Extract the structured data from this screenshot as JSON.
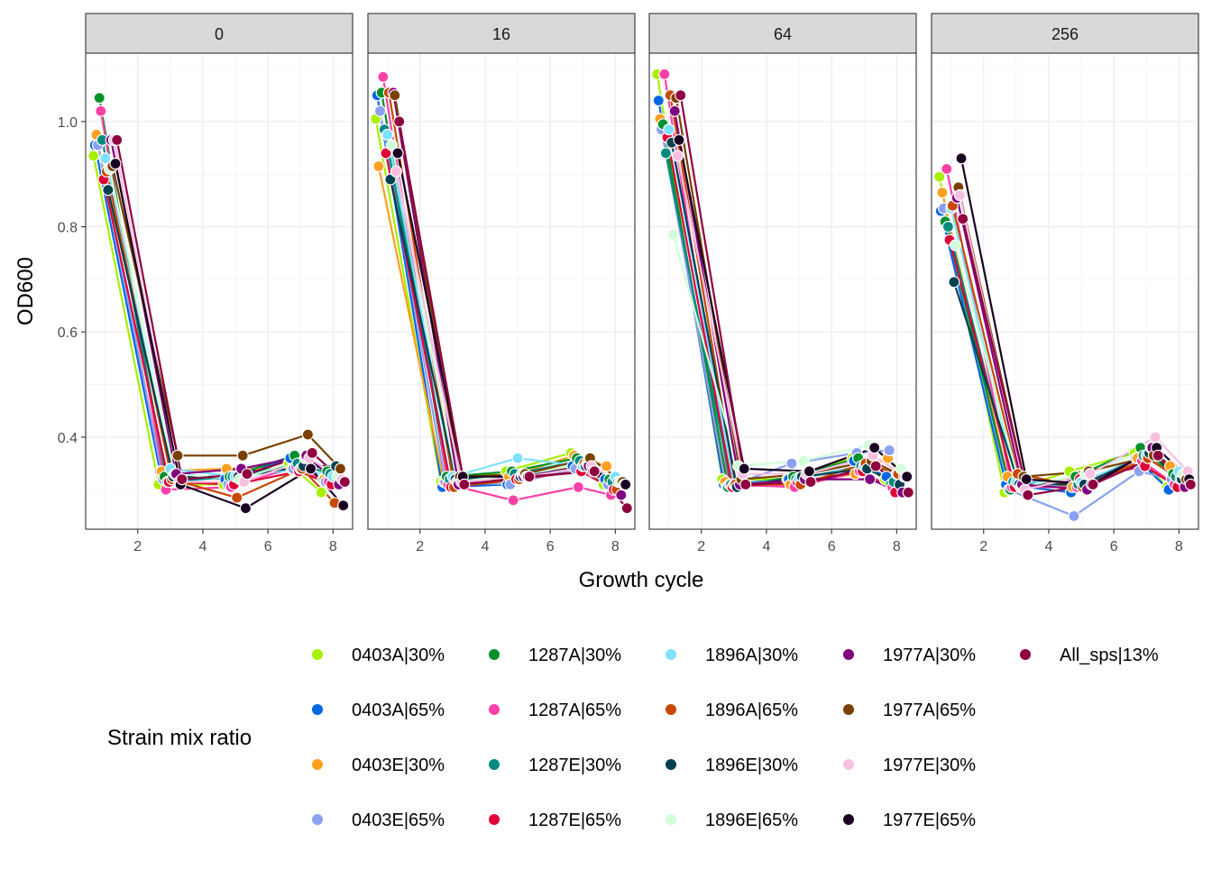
{
  "chart_data": {
    "type": "line",
    "xlabel": "Growth cycle",
    "ylabel": "OD600",
    "xlim": [
      0.4,
      8.6
    ],
    "ylim": [
      0.225,
      1.13
    ],
    "x_ticks": [
      2,
      4,
      6,
      8
    ],
    "y_ticks": [
      0.4,
      0.6,
      0.8,
      1.0
    ],
    "y_tick_labels": [
      "0.4",
      "0.6",
      "0.8",
      "1.0"
    ],
    "grid": true,
    "legend_position": "bottom",
    "legend_title": "Strain mix ratio",
    "facets": [
      "0",
      "16",
      "64",
      "256"
    ],
    "x": [
      1,
      3,
      5,
      7,
      8
    ],
    "series": [
      {
        "name": "0403A|30%",
        "color": "#a6f000",
        "values": [
          [
            0.935,
            0.31,
            0.31,
            0.35,
            0.295
          ],
          [
            1.005,
            0.315,
            0.335,
            0.37,
            0.31
          ],
          [
            1.09,
            0.32,
            0.32,
            0.36,
            0.32
          ],
          [
            0.895,
            0.295,
            0.335,
            0.37,
            0.305
          ]
        ]
      },
      {
        "name": "0403A|65%",
        "color": "#0066e6",
        "values": [
          [
            0.955,
            0.335,
            0.32,
            0.36,
            0.32
          ],
          [
            1.05,
            0.305,
            0.31,
            0.345,
            0.32
          ],
          [
            1.04,
            0.31,
            0.32,
            0.355,
            0.325
          ],
          [
            0.83,
            0.31,
            0.295,
            0.36,
            0.3
          ]
        ]
      },
      {
        "name": "0403E|30%",
        "color": "#ffa020",
        "values": [
          [
            0.975,
            0.335,
            0.34,
            0.34,
            0.32
          ],
          [
            0.915,
            0.315,
            0.325,
            0.365,
            0.345
          ],
          [
            1.005,
            0.315,
            0.31,
            0.33,
            0.36
          ],
          [
            0.865,
            0.325,
            0.305,
            0.36,
            0.345
          ]
        ]
      },
      {
        "name": "0403E|65%",
        "color": "#8aa0f0",
        "values": [
          [
            0.955,
            0.32,
            0.31,
            0.34,
            0.315
          ],
          [
            1.02,
            0.315,
            0.31,
            0.34,
            0.31
          ],
          [
            0.985,
            0.305,
            0.35,
            0.37,
            0.375
          ],
          [
            0.835,
            0.3,
            0.25,
            0.335,
            0.32
          ]
        ]
      },
      {
        "name": "1287A|30%",
        "color": "#00902a",
        "values": [
          [
            1.045,
            0.325,
            0.325,
            0.365,
            0.335
          ],
          [
            1.055,
            0.325,
            0.335,
            0.36,
            0.32
          ],
          [
            0.995,
            0.305,
            0.325,
            0.36,
            0.31
          ],
          [
            0.81,
            0.3,
            0.325,
            0.38,
            0.33
          ]
        ]
      },
      {
        "name": "1287A|65%",
        "color": "#ff40a8",
        "values": [
          [
            1.02,
            0.3,
            0.305,
            0.345,
            0.315
          ],
          [
            1.085,
            0.31,
            0.28,
            0.305,
            0.29
          ],
          [
            1.09,
            0.31,
            0.305,
            0.335,
            0.305
          ],
          [
            0.91,
            0.305,
            0.305,
            0.355,
            0.31
          ]
        ]
      },
      {
        "name": "1287E|30%",
        "color": "#008a80",
        "values": [
          [
            0.965,
            0.315,
            0.325,
            0.35,
            0.33
          ],
          [
            0.985,
            0.32,
            0.33,
            0.355,
            0.315
          ],
          [
            0.94,
            0.31,
            0.32,
            0.345,
            0.315
          ],
          [
            0.8,
            0.315,
            0.31,
            0.365,
            0.325
          ]
        ]
      },
      {
        "name": "1287E|65%",
        "color": "#e00038",
        "values": [
          [
            0.89,
            0.315,
            0.31,
            0.335,
            0.31
          ],
          [
            0.94,
            0.305,
            0.32,
            0.335,
            0.3
          ],
          [
            0.97,
            0.305,
            0.315,
            0.335,
            0.295
          ],
          [
            0.775,
            0.305,
            0.32,
            0.345,
            0.305
          ]
        ]
      },
      {
        "name": "1896A|30%",
        "color": "#80e0ff",
        "values": [
          [
            0.93,
            0.34,
            0.325,
            0.34,
            0.325
          ],
          [
            0.975,
            0.325,
            0.36,
            0.345,
            0.325
          ],
          [
            0.985,
            0.31,
            0.32,
            0.345,
            0.33
          ],
          [
            0.835,
            0.315,
            0.315,
            0.365,
            0.335
          ]
        ]
      },
      {
        "name": "1896A|65%",
        "color": "#c84800",
        "values": [
          [
            0.905,
            0.32,
            0.285,
            0.34,
            0.275
          ],
          [
            1.055,
            0.305,
            0.32,
            0.35,
            0.3
          ],
          [
            1.05,
            0.31,
            0.31,
            0.35,
            0.33
          ],
          [
            0.84,
            0.33,
            0.305,
            0.36,
            0.32
          ]
        ]
      },
      {
        "name": "1896E|30%",
        "color": "#004050",
        "values": [
          [
            0.87,
            0.325,
            0.325,
            0.345,
            0.345
          ],
          [
            0.89,
            0.32,
            0.325,
            0.345,
            0.315
          ],
          [
            0.96,
            0.305,
            0.325,
            0.34,
            0.31
          ],
          [
            0.695,
            0.31,
            0.31,
            0.37,
            0.32
          ]
        ]
      },
      {
        "name": "1896E|65%",
        "color": "#d0ffd8",
        "values": [
          [
            0.91,
            0.33,
            0.32,
            0.36,
            0.325
          ],
          [
            0.955,
            0.315,
            0.33,
            0.35,
            0.315
          ],
          [
            0.785,
            0.345,
            0.355,
            0.385,
            0.34
          ],
          [
            0.765,
            0.305,
            0.33,
            0.38,
            0.33
          ]
        ]
      },
      {
        "name": "1977A|30%",
        "color": "#800080",
        "values": [
          [
            0.965,
            0.33,
            0.34,
            0.365,
            0.31
          ],
          [
            1.055,
            0.31,
            0.325,
            0.345,
            0.29
          ],
          [
            1.02,
            0.31,
            0.32,
            0.32,
            0.295
          ],
          [
            0.855,
            0.31,
            0.3,
            0.38,
            0.305
          ]
        ]
      },
      {
        "name": "1977A|65%",
        "color": "#7a4000",
        "values": [
          [
            0.915,
            0.365,
            0.365,
            0.405,
            0.34
          ],
          [
            1.05,
            0.325,
            0.33,
            0.36,
            0.315
          ],
          [
            1.045,
            0.32,
            0.33,
            0.355,
            0.325
          ],
          [
            0.875,
            0.325,
            0.335,
            0.365,
            0.32
          ]
        ]
      },
      {
        "name": "1977E|30%",
        "color": "#f8c0e0",
        "values": [
          [
            0.965,
            0.315,
            0.315,
            0.36,
            0.32
          ],
          [
            0.905,
            0.315,
            0.325,
            0.345,
            0.31
          ],
          [
            0.935,
            0.33,
            0.33,
            0.365,
            0.325
          ],
          [
            0.86,
            0.3,
            0.33,
            0.4,
            0.335
          ]
        ]
      },
      {
        "name": "1977E|65%",
        "color": "#1a0020",
        "values": [
          [
            0.92,
            0.31,
            0.265,
            0.34,
            0.27
          ],
          [
            0.94,
            0.325,
            0.325,
            0.335,
            0.31
          ],
          [
            0.965,
            0.34,
            0.335,
            0.38,
            0.325
          ],
          [
            0.93,
            0.32,
            0.31,
            0.38,
            0.32
          ]
        ]
      },
      {
        "name": "All_sps|13%",
        "color": "#900040",
        "values": [
          [
            0.965,
            0.32,
            0.33,
            0.37,
            0.315
          ],
          [
            1.0,
            0.31,
            0.325,
            0.335,
            0.265
          ],
          [
            1.05,
            0.31,
            0.315,
            0.345,
            0.295
          ],
          [
            0.815,
            0.29,
            0.31,
            0.365,
            0.31
          ]
        ]
      }
    ]
  }
}
